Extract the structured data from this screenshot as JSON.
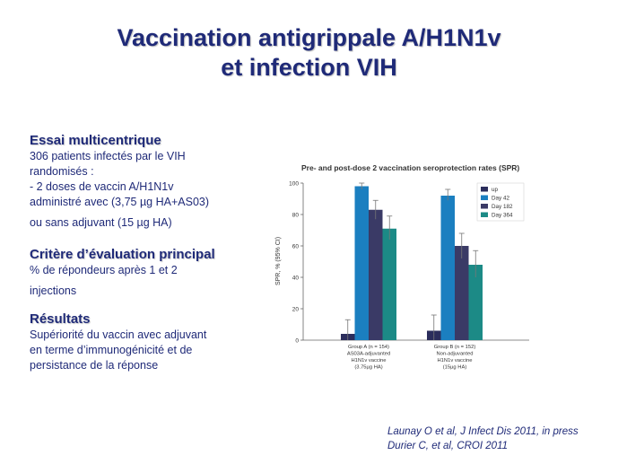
{
  "slide": {
    "title_line1": "Vaccination antigrippale A/H1N1v",
    "title_line2": "et infection VIH"
  },
  "left": {
    "section1_heading": "Essai multicentrique",
    "section1_lines": [
      "306 patients infectés par le VIH",
      "randomisés :",
      "- 2 doses de vaccin A/H1N1v",
      "administré avec (3,75 µg HA+AS03)",
      "ou sans adjuvant (15 µg HA)"
    ],
    "section2_heading": "Critère d’évaluation principal",
    "section2_lines": [
      "% de répondeurs après 1 et 2",
      "injections"
    ],
    "section3_heading": "Résultats",
    "section3_lines": [
      "Supériorité du vaccin avec adjuvant",
      "en terme d’immunogénicité et de",
      "persistance de la réponse"
    ]
  },
  "references": [
    "Launay O et al, J Infect Dis 2011, in press",
    "Durier C, et al, CROI 2011"
  ],
  "chart_data": {
    "type": "bar",
    "title": "Pre- and post-dose 2 vaccination seroprotection rates (SPR)",
    "ylabel": "SPR, % (95% CI)",
    "xlabel": "",
    "ylim": [
      0,
      100
    ],
    "yticks": [
      0,
      20,
      40,
      60,
      80,
      100
    ],
    "grid": false,
    "legend_position": "top-right",
    "categories": [
      {
        "lines": [
          "Group A (n = 154)",
          "AS03A-adjuvanted",
          "H1N1v vaccine",
          "(3.75µg HA)"
        ]
      },
      {
        "lines": [
          "Group B (n = 152)",
          "Non-adjuvanted",
          "H1N1v vaccine",
          "(15µg HA)"
        ]
      }
    ],
    "series": [
      {
        "name": "up",
        "color": "#2b2d5c",
        "values": [
          4,
          6
        ],
        "err_low": [
          0,
          0
        ],
        "err_high": [
          13,
          16
        ]
      },
      {
        "name": "Day 42",
        "color": "#1b7fc0",
        "values": [
          98,
          92
        ],
        "err_low": [
          96,
          89
        ],
        "err_high": [
          100,
          96
        ]
      },
      {
        "name": "Day 182",
        "color": "#3a3a66",
        "values": [
          83,
          60
        ],
        "err_low": [
          77,
          52
        ],
        "err_high": [
          89,
          68
        ]
      },
      {
        "name": "Day 364",
        "color": "#1c8a86",
        "values": [
          71,
          48
        ],
        "err_low": [
          64,
          40
        ],
        "err_high": [
          79,
          57
        ]
      }
    ]
  }
}
